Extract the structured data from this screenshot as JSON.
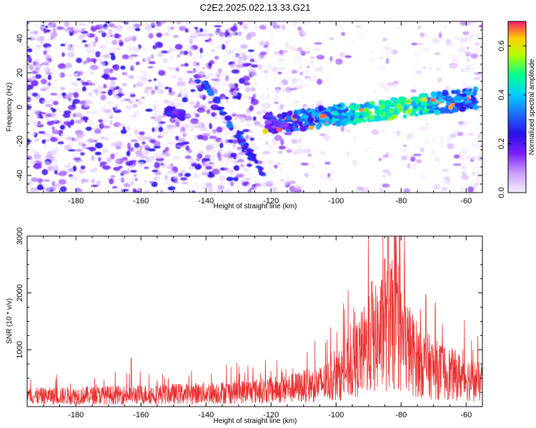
{
  "title": "C2E2.2025.022.13.33.G21",
  "chart_data": [
    {
      "type": "heatmap",
      "name": "spectrogram",
      "xlabel": "Height of straight line (km)",
      "ylabel": "Frequency (Hz)",
      "xlim": [
        -195,
        -55
      ],
      "ylim": [
        -50,
        50
      ],
      "xticks": [
        -180,
        -160,
        -140,
        -120,
        -100,
        -80,
        -60
      ],
      "yticks": [
        -40,
        -20,
        0,
        20,
        40
      ],
      "colorbar": {
        "label": "Normalized spectral amplitude",
        "range": [
          0,
          0.7
        ],
        "ticks": [
          0.0,
          0.2,
          0.4,
          0.6
        ],
        "stops": [
          {
            "v": 0.0,
            "color": "#f6ecff"
          },
          {
            "v": 0.08,
            "color": "#c9a0ff"
          },
          {
            "v": 0.16,
            "color": "#7a1fff"
          },
          {
            "v": 0.24,
            "color": "#2a10e8"
          },
          {
            "v": 0.32,
            "color": "#1f6bff"
          },
          {
            "v": 0.4,
            "color": "#00d0ff"
          },
          {
            "v": 0.48,
            "color": "#00ff90"
          },
          {
            "v": 0.56,
            "color": "#b0ff00"
          },
          {
            "v": 0.63,
            "color": "#ffd000"
          },
          {
            "v": 0.7,
            "color": "#ff1a6b"
          }
        ]
      },
      "features": [
        {
          "name": "steep descending streak",
          "from": [
            -142,
            18
          ],
          "to": [
            -122,
            -40
          ],
          "amplitude": 0.25
        },
        {
          "name": "main signal band",
          "from": [
            -122,
            -10
          ],
          "to": [
            -57,
            5
          ],
          "peak_height_km": -83,
          "peak_amplitude": 0.6
        },
        {
          "name": "minor streak",
          "from": [
            -152,
            -2
          ],
          "to": [
            -147,
            -5
          ],
          "amplitude": 0.2
        }
      ]
    },
    {
      "type": "line",
      "name": "snr",
      "xlabel": "Height of straight line (km)",
      "ylabel": "SNR (10 * v/v)",
      "color": "#e83030",
      "xlim": [
        -195,
        -55
      ],
      "ylim": [
        0,
        3000
      ],
      "xticks": [
        -180,
        -160,
        -140,
        -120,
        -100,
        -80,
        -60
      ],
      "yticks": [
        1000,
        2000,
        3000
      ],
      "series": [
        {
          "name": "SNR",
          "x": [
            -195,
            -185,
            -175,
            -165,
            -155,
            -145,
            -135,
            -125,
            -115,
            -105,
            -100,
            -95,
            -90,
            -85,
            -83,
            -80,
            -75,
            -70,
            -65,
            -60,
            -55
          ],
          "values": [
            220,
            230,
            240,
            250,
            260,
            280,
            300,
            330,
            380,
            480,
            600,
            900,
            1300,
            1600,
            1750,
            1450,
            1000,
            800,
            700,
            600,
            500
          ]
        }
      ],
      "notable_peaks": [
        {
          "x": -84,
          "y": 3000
        },
        {
          "x": -82,
          "y": 3000
        },
        {
          "x": -85,
          "y": 2600
        },
        {
          "x": -89,
          "y": 2200
        },
        {
          "x": -163,
          "y": 850
        }
      ]
    }
  ]
}
